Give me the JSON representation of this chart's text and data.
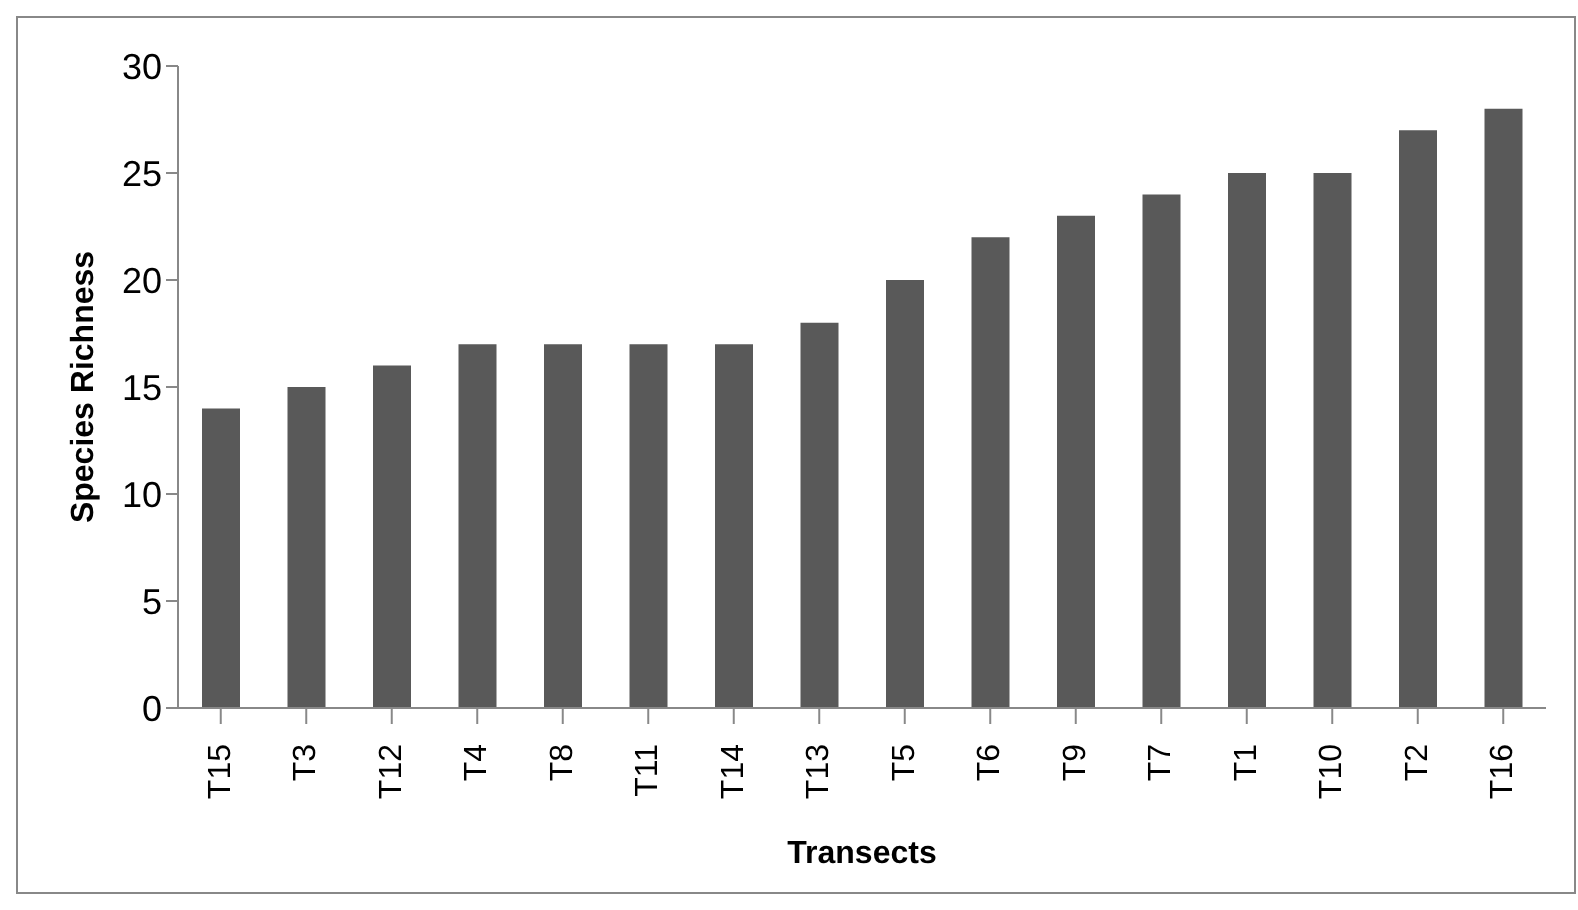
{
  "chart_data": {
    "type": "bar",
    "xlabel": "Transects",
    "ylabel": "Species Richness",
    "categories": [
      "T15",
      "T3",
      "T12",
      "T4",
      "T8",
      "T11",
      "T14",
      "T13",
      "T5",
      "T6",
      "T9",
      "T7",
      "T1",
      "T10",
      "T2",
      "T16"
    ],
    "values": [
      14,
      15,
      16,
      17,
      17,
      17,
      17,
      18,
      20,
      22,
      23,
      24,
      25,
      25,
      27,
      28
    ],
    "color": "#595959",
    "ylim": [
      0,
      30
    ],
    "yticks": [
      0,
      5,
      10,
      15,
      20,
      25,
      30
    ],
    "grid": false,
    "legend": false
  }
}
